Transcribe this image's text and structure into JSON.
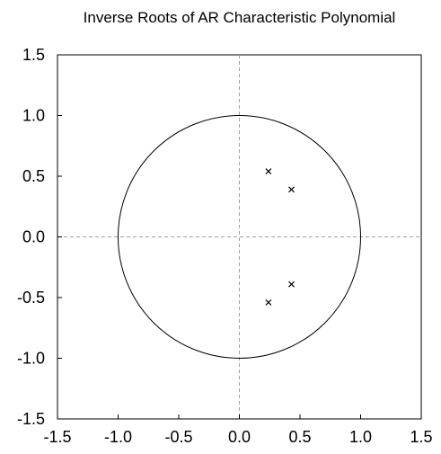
{
  "chart_data": {
    "type": "scatter",
    "title": "Inverse Roots of AR Characteristic Polynomial",
    "xlabel": "",
    "ylabel": "",
    "xlim": [
      -1.5,
      1.5
    ],
    "ylim": [
      -1.5,
      1.5
    ],
    "x_ticks": [
      "-1.5",
      "-1.0",
      "-0.5",
      "0.0",
      "0.5",
      "1.0",
      "1.5"
    ],
    "y_ticks": [
      "1.5",
      "1.0",
      "0.5",
      "0.0",
      "-0.5",
      "-1.0",
      "-1.5"
    ],
    "grid": false,
    "reference_lines": {
      "x": 0,
      "y": 0,
      "style": "dashed",
      "color": "#a0a0a0"
    },
    "unit_circle": {
      "radius": 1.0
    },
    "marker": "x",
    "series": [
      {
        "points": [
          {
            "x": 0.24,
            "y": 0.54
          },
          {
            "x": 0.43,
            "y": 0.39
          },
          {
            "x": 0.43,
            "y": -0.39
          },
          {
            "x": 0.24,
            "y": -0.54
          }
        ]
      }
    ]
  }
}
